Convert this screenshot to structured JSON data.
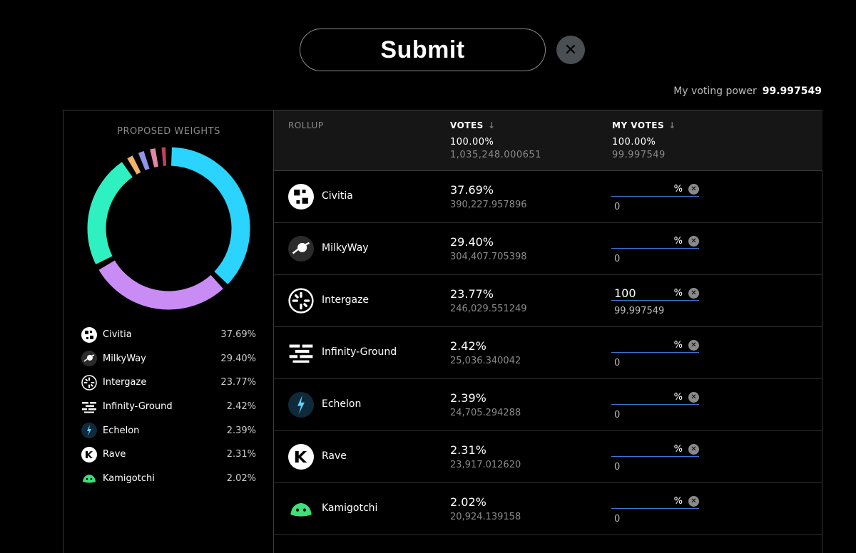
{
  "header": {
    "submit_label": "Submit",
    "close_icon": "close-icon",
    "voting_power_label": "My voting power",
    "voting_power_value": "99.997549"
  },
  "left_panel": {
    "title": "PROPOSED WEIGHTS"
  },
  "table": {
    "headers": {
      "rollup": "ROLLUP",
      "votes": "VOTES",
      "votes_arrow": "↓",
      "votes_pct": "100.00%",
      "votes_total": "1,035,248.000651",
      "my_votes": "MY VOTES",
      "my_votes_arrow": "↓",
      "my_votes_pct": "100.00%",
      "my_votes_total": "99.997549"
    },
    "rows": [
      {
        "name": "Civitia",
        "pct": "37.69%",
        "amount": "390,227.957896",
        "input_value": "",
        "input_unit": "%",
        "my_amount": "0",
        "icon": "civitia-icon"
      },
      {
        "name": "MilkyWay",
        "pct": "29.40%",
        "amount": "304,407.705398",
        "input_value": "",
        "input_unit": "%",
        "my_amount": "0",
        "icon": "milkyway-icon"
      },
      {
        "name": "Intergaze",
        "pct": "23.77%",
        "amount": "246,029.551249",
        "input_value": "100",
        "input_unit": "%",
        "my_amount": "99.997549",
        "icon": "intergaze-icon"
      },
      {
        "name": "Infinity-Ground",
        "pct": "2.42%",
        "amount": "25,036.340042",
        "input_value": "",
        "input_unit": "%",
        "my_amount": "0",
        "icon": "infinity-ground-icon"
      },
      {
        "name": "Echelon",
        "pct": "2.39%",
        "amount": "24,705.294288",
        "input_value": "",
        "input_unit": "%",
        "my_amount": "0",
        "icon": "echelon-icon"
      },
      {
        "name": "Rave",
        "pct": "2.31%",
        "amount": "23,917.012620",
        "input_value": "",
        "input_unit": "%",
        "my_amount": "0",
        "icon": "rave-icon"
      },
      {
        "name": "Kamigotchi",
        "pct": "2.02%",
        "amount": "20,924.139158",
        "input_value": "",
        "input_unit": "%",
        "my_amount": "0",
        "icon": "kamigotchi-icon"
      }
    ]
  },
  "legend": [
    {
      "name": "Civitia",
      "pct": "37.69%"
    },
    {
      "name": "MilkyWay",
      "pct": "29.40%"
    },
    {
      "name": "Intergaze",
      "pct": "23.77%"
    },
    {
      "name": "Infinity-Ground",
      "pct": "2.42%"
    },
    {
      "name": "Echelon",
      "pct": "2.39%"
    },
    {
      "name": "Rave",
      "pct": "2.31%"
    },
    {
      "name": "Kamigotchi",
      "pct": "2.02%"
    }
  ],
  "chart_data": {
    "type": "pie",
    "categories": [
      "Civitia",
      "MilkyWay",
      "Intergaze",
      "Infinity-Ground",
      "Echelon",
      "Rave",
      "Kamigotchi"
    ],
    "values": [
      37.69,
      29.4,
      23.77,
      2.42,
      2.39,
      2.31,
      2.02
    ],
    "colors": [
      "#2ad4ff",
      "#c98cf5",
      "#2ef0c0",
      "#f5b26b",
      "#8f94e6",
      "#e287a6",
      "#c2415d"
    ],
    "title": "PROPOSED WEIGHTS"
  }
}
